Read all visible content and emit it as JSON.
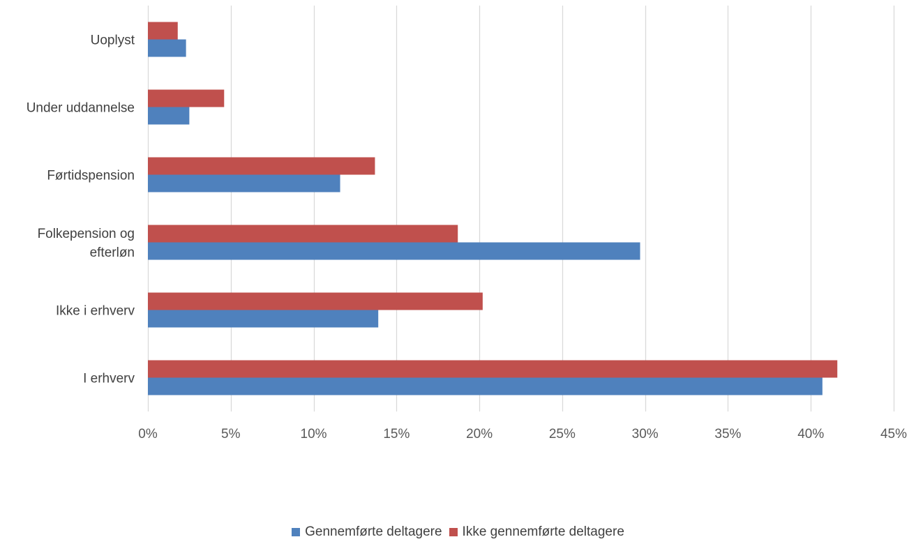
{
  "chart_data": {
    "type": "bar",
    "orientation": "horizontal",
    "categories": [
      "I erhverv",
      "Ikke i erhverv",
      "Folkepension og efterløn",
      "Førtidspension",
      "Under uddannelse",
      "Uoplyst"
    ],
    "category_lines": [
      [
        "I erhverv"
      ],
      [
        "Ikke i erhverv"
      ],
      [
        "Folkepension og",
        "efterløn"
      ],
      [
        "Førtidspension"
      ],
      [
        "Under uddannelse"
      ],
      [
        "Uoplyst"
      ]
    ],
    "series": [
      {
        "name": "Gennemførte deltagere",
        "color": "#4f81bd",
        "values": [
          40.7,
          13.9,
          29.7,
          11.6,
          2.5,
          2.3
        ]
      },
      {
        "name": "Ikke gennemførte deltagere",
        "color": "#c0504d",
        "values": [
          41.6,
          20.2,
          18.7,
          13.7,
          4.6,
          1.8
        ]
      }
    ],
    "xlim": [
      0,
      45
    ],
    "xticks": [
      0,
      5,
      10,
      15,
      20,
      25,
      30,
      35,
      40,
      45
    ],
    "tick_labels": [
      "0%",
      "5%",
      "10%",
      "15%",
      "20%",
      "25%",
      "30%",
      "35%",
      "40%",
      "45%"
    ],
    "grid": true,
    "legend_position": "bottom"
  }
}
